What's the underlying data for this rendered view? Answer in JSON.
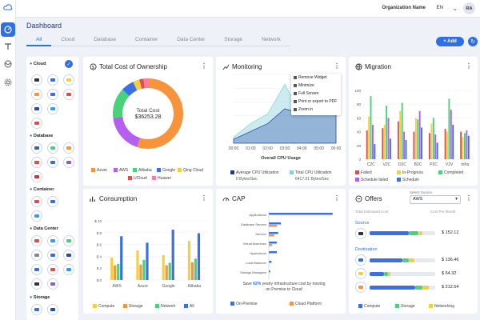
{
  "header": {
    "org": "Organization Name",
    "lang": "EN",
    "avatar": "RA"
  },
  "page_title": "Dashboard",
  "tabs": [
    "All",
    "Cloud",
    "Database",
    "Container",
    "Data Center",
    "Storage",
    "Network"
  ],
  "add_label": "+ Add",
  "sidebar": {
    "sections": [
      "Cloud",
      "Database",
      "Container",
      "Data Center",
      "Storage"
    ]
  },
  "tco": {
    "title": "Total Cost of Ownership",
    "center_label": "Total Cost",
    "center_value": "$36253.28",
    "legend": [
      "Azure",
      "AWS",
      "Alibaba",
      "Google",
      "Qing Cloud",
      "UCloud",
      "Huawei"
    ],
    "colors": [
      "#f7943b",
      "#b55ff0",
      "#4ad27a",
      "#3b6fe4",
      "#f4cf3d",
      "#e04d4d",
      "#ff7aa8"
    ],
    "chart_data": {
      "type": "pie",
      "categories": [
        "Azure",
        "AWS",
        "Alibaba",
        "Google",
        "Qing Cloud",
        "UCloud",
        "Huawei"
      ],
      "values": [
        55,
        18,
        14,
        6,
        3,
        2,
        2
      ]
    }
  },
  "monitoring": {
    "title": "Monitoring",
    "menu": [
      "Remove Widget",
      "Minimize",
      "Full Screen",
      "Print or export to PDF",
      "Zoom in"
    ],
    "xlabel": "Overall CPU Usage",
    "legend": [
      "Average CPU Utilization",
      "Total CPU Utilization"
    ],
    "legend_values": [
      "0 Bytes/Sec",
      "6417.01 Bytes/Sec"
    ],
    "chart_data": {
      "type": "area",
      "x": [
        "00:00",
        "01:00",
        "02:00",
        "03:00",
        "04:00",
        "05:00",
        "06:00"
      ],
      "series": [
        {
          "name": "Average CPU Utilization",
          "values": [
            4,
            12,
            20,
            35,
            30,
            38,
            32
          ]
        },
        {
          "name": "Total CPU Utilization",
          "values": [
            6,
            20,
            30,
            60,
            28,
            52,
            62
          ]
        }
      ],
      "ylim": [
        0,
        70
      ]
    }
  },
  "migration": {
    "title": "Migration",
    "legend": [
      "Failed",
      "In-Progress",
      "Completed",
      "Schedule failed",
      "Schedule"
    ],
    "colors": [
      "#e04d4d",
      "#f4cf3d",
      "#4ad27a",
      "#b55ff0",
      "#3b6fe4"
    ],
    "chart_data": {
      "type": "bar",
      "categories": [
        "C2C",
        "V2C",
        "D2C",
        "B2C",
        "P2C",
        "V2V",
        "Infra"
      ],
      "ylim": [
        0,
        100
      ],
      "yticks": [
        "0",
        "20",
        "40",
        "60",
        "80",
        "100"
      ],
      "series": [
        {
          "name": "Failed",
          "values": [
            42,
            45,
            55,
            40,
            38,
            44,
            40
          ]
        },
        {
          "name": "In-Progress",
          "values": [
            62,
            50,
            70,
            60,
            52,
            40,
            32
          ]
        },
        {
          "name": "Completed",
          "values": [
            92,
            78,
            82,
            58,
            60,
            88,
            38
          ]
        },
        {
          "name": "Schedule failed",
          "values": [
            50,
            60,
            40,
            70,
            36,
            72,
            42
          ]
        },
        {
          "name": "Schedule",
          "values": [
            22,
            30,
            28,
            46,
            24,
            50,
            34
          ]
        }
      ]
    }
  },
  "consumption": {
    "title": "Consumption",
    "legend": [
      "Compute",
      "Storage",
      "Network",
      "All"
    ],
    "colors": [
      "#f4cf3d",
      "#f7943b",
      "#4ad27a",
      "#3b6fe4"
    ],
    "chart_data": {
      "type": "bar",
      "categories": [
        "AWS",
        "Azure",
        "Google",
        "Alibaba"
      ],
      "yticks": [
        "$ 0",
        "$ 2",
        "$ 4",
        "$ 6",
        "$ 8",
        "$ 10"
      ],
      "ylim": [
        0,
        10
      ],
      "series": [
        {
          "name": "Compute",
          "values": [
            3.8,
            5.0,
            4.2,
            6.6
          ]
        },
        {
          "name": "Storage",
          "values": [
            2.5,
            2.6,
            2.5,
            3.0
          ]
        },
        {
          "name": "Network",
          "values": [
            2.7,
            3.4,
            2.9,
            3.6
          ]
        },
        {
          "name": "All",
          "values": [
            7.4,
            6.3,
            8.5,
            7.9
          ]
        }
      ]
    }
  },
  "cap": {
    "title": "CAP",
    "note_pre": "Save",
    "note_pct": "62%",
    "note_post": "yearly Infrastructure cost by moving on Premise to Cloud",
    "legend": [
      "On-Premise",
      "Cloud Platform"
    ],
    "colors": [
      "#3b6fe4",
      "#f7943b"
    ],
    "chart_data": {
      "type": "bar",
      "categories": [
        "Applications",
        "Database Servers",
        "Servers",
        "Virtual Machines",
        "Hypervisors",
        "Load Balancer",
        "Storage Managers"
      ],
      "series": [
        {
          "name": "On-Premise",
          "values": [
            95,
            18,
            14,
            12,
            12,
            4,
            2
          ]
        },
        {
          "name": "Cloud Platform",
          "values": [
            0,
            12,
            8,
            5,
            0,
            0,
            0
          ]
        }
      ]
    }
  },
  "offers": {
    "title": "Offers",
    "select_label": "Select Source",
    "select_value": "AWS",
    "col_left": "Total Estimated Cost",
    "col_right": "Cost Per Month",
    "source_label": "Source",
    "destination_label": "Destination",
    "rows": [
      {
        "amount": "$ 152.12",
        "compute": 60,
        "storage": 15,
        "network": 5
      },
      {
        "amount": "$ 136.46",
        "compute": 50,
        "storage": 10,
        "network": 8
      },
      {
        "amount": "$ 64.32",
        "compute": 22,
        "storage": 6,
        "network": 4
      },
      {
        "amount": "$ 212.54",
        "compute": 70,
        "storage": 10,
        "network": 10
      }
    ],
    "legend": [
      "Compute",
      "Storage",
      "Networking"
    ],
    "colors": [
      "#3b6fe4",
      "#4ad27a",
      "#f4cf3d"
    ]
  }
}
